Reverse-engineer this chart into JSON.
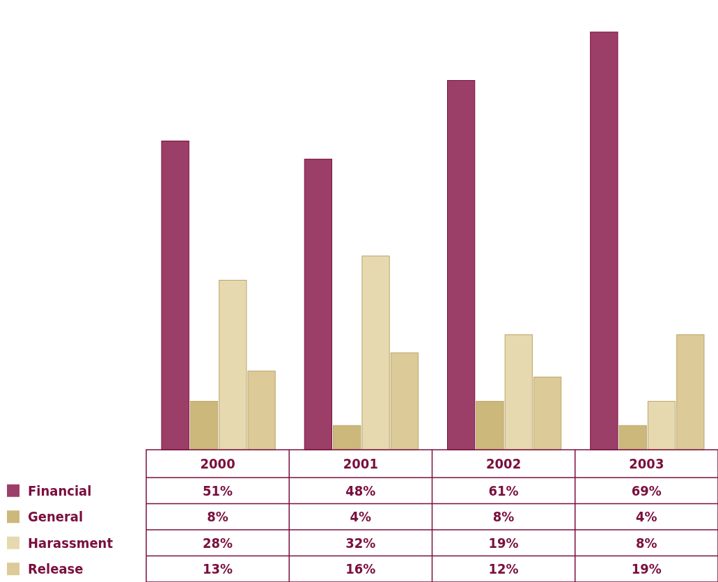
{
  "chart_data": {
    "type": "bar",
    "categories": [
      "2000",
      "2001",
      "2002",
      "2003"
    ],
    "legend": "bottom left",
    "series": [
      {
        "name": "Financial",
        "color": "#9c3f68",
        "values": [
          51,
          48,
          61,
          69
        ],
        "value_labels": [
          "51%",
          "48%",
          "61%",
          "69%"
        ]
      },
      {
        "name": "General",
        "color": "#cdb87c",
        "values": [
          8,
          4,
          8,
          4
        ],
        "value_labels": [
          "8%",
          "4%",
          "8%",
          "4%"
        ]
      },
      {
        "name": "Harassment",
        "color": "#e6d9b0",
        "values": [
          28,
          32,
          19,
          8
        ],
        "value_labels": [
          "28%",
          "32%",
          "19%",
          "8%"
        ]
      },
      {
        "name": "Release",
        "color": "#dccb98",
        "values": [
          13,
          16,
          12,
          19
        ],
        "value_labels": [
          "13%",
          "16%",
          "12%",
          "19%"
        ]
      }
    ]
  }
}
